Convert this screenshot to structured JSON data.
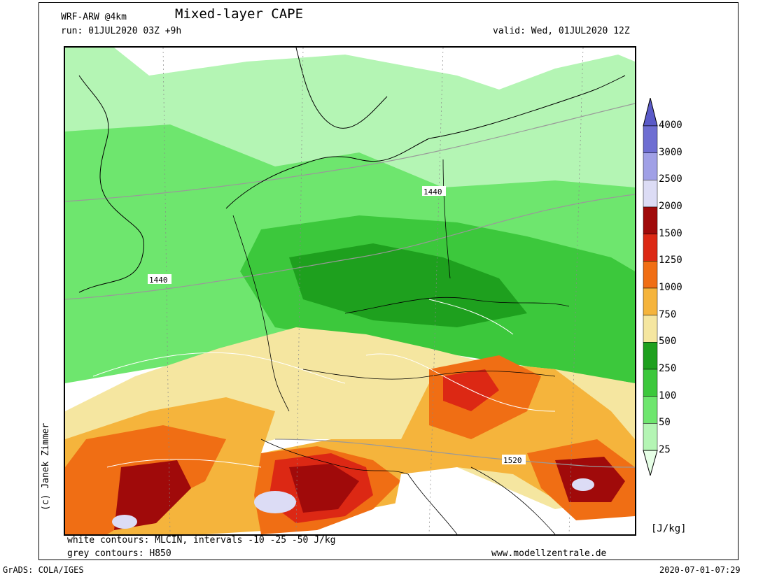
{
  "header": {
    "model": "WRF-ARW @4km",
    "title": "Mixed-layer CAPE",
    "run": "run: 01JUL2020 03Z +9h",
    "valid": "valid: Wed, 01JUL2020 12Z"
  },
  "footer": {
    "white_contours": "white contours: MLCIN, intervals -10 -25 -50 J/kg",
    "grey_contours": "grey contours: H850",
    "website": "www.modellzentrale.de",
    "grads": "GrADS: COLA/IGES",
    "timestamp": "2020-07-01-07:29"
  },
  "credit": "(c) Janek Zimmer",
  "map": {
    "contour_labels": [
      "1440",
      "1440",
      "1520"
    ]
  },
  "colorbar": {
    "unit": "[J/kg]",
    "levels": [
      "25",
      "50",
      "100",
      "250",
      "500",
      "750",
      "1000",
      "1250",
      "1500",
      "2000",
      "2500",
      "3000",
      "4000"
    ],
    "colors": [
      "#e6ffe6",
      "#b4f5b4",
      "#6ee66e",
      "#3cc83c",
      "#1ea01e",
      "#f5e6a0",
      "#f5b43c",
      "#f06e14",
      "#dc2814",
      "#a00a0a",
      "#dcdcf5",
      "#a0a0e6",
      "#6e6ed2"
    ],
    "top_color": "#5a5ac8"
  }
}
